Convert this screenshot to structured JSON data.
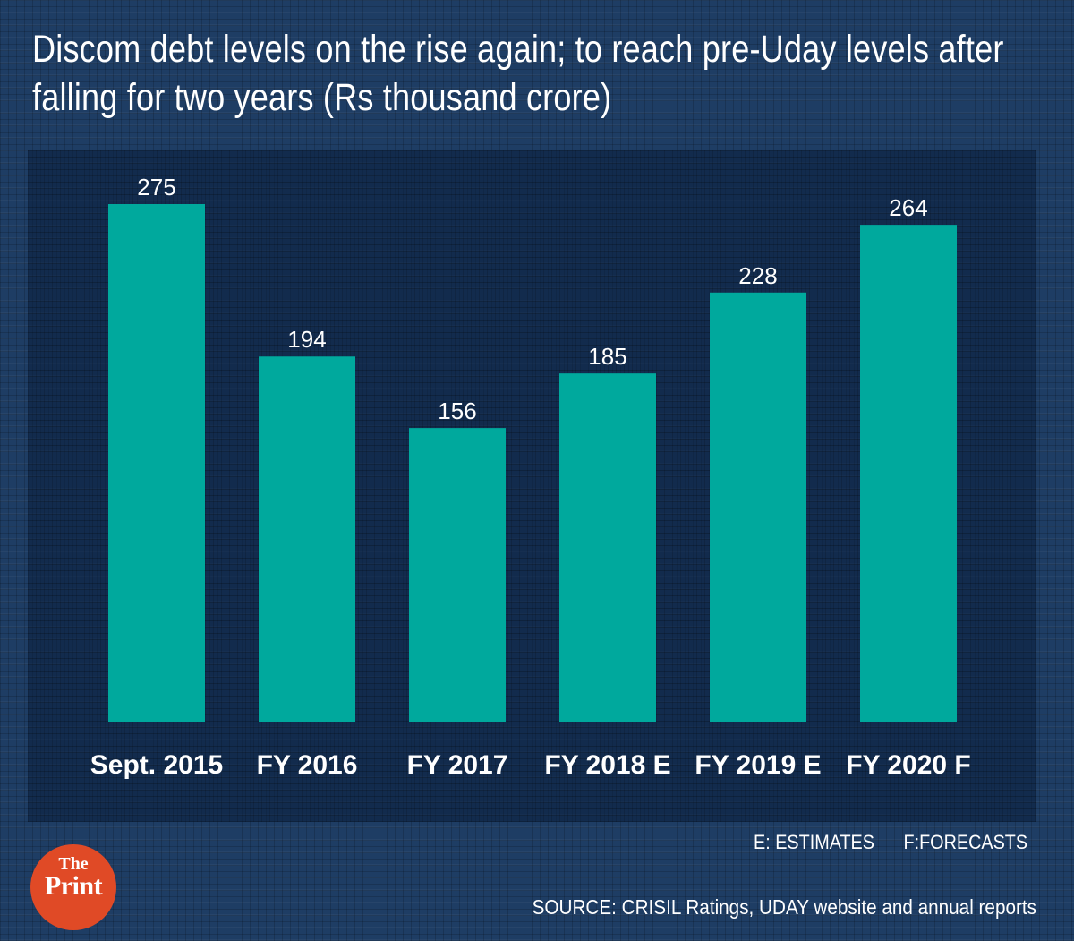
{
  "header": {
    "title_line1": "Discom debt levels on the rise again; to reach pre-Uday levels after",
    "title_line2": "falling for two years (Rs thousand crore)"
  },
  "chart_data": {
    "type": "bar",
    "title": "Discom debt levels on the rise again; to reach pre-Uday levels after falling for two years (Rs thousand crore)",
    "categories": [
      "Sept. 2015",
      "FY 2016",
      "FY 2017",
      "FY 2018 E",
      "FY 2019 E",
      "FY 2020 F"
    ],
    "values": [
      275,
      194,
      156,
      185,
      228,
      264
    ],
    "xlabel": "",
    "ylabel": "",
    "ylim": [
      0,
      275
    ],
    "bar_color": "#00a99d",
    "grid": false,
    "data_labels": true
  },
  "notes": {
    "estimates": "E: ESTIMATES",
    "forecasts": "F:FORECASTS"
  },
  "footer": {
    "source": "SOURCE: CRISIL Ratings, UDAY website and annual reports"
  },
  "logo": {
    "line1": "The",
    "line2": "Print",
    "color": "#e04a26"
  },
  "colors": {
    "background": "#1e3d64",
    "text": "#ffffff"
  }
}
